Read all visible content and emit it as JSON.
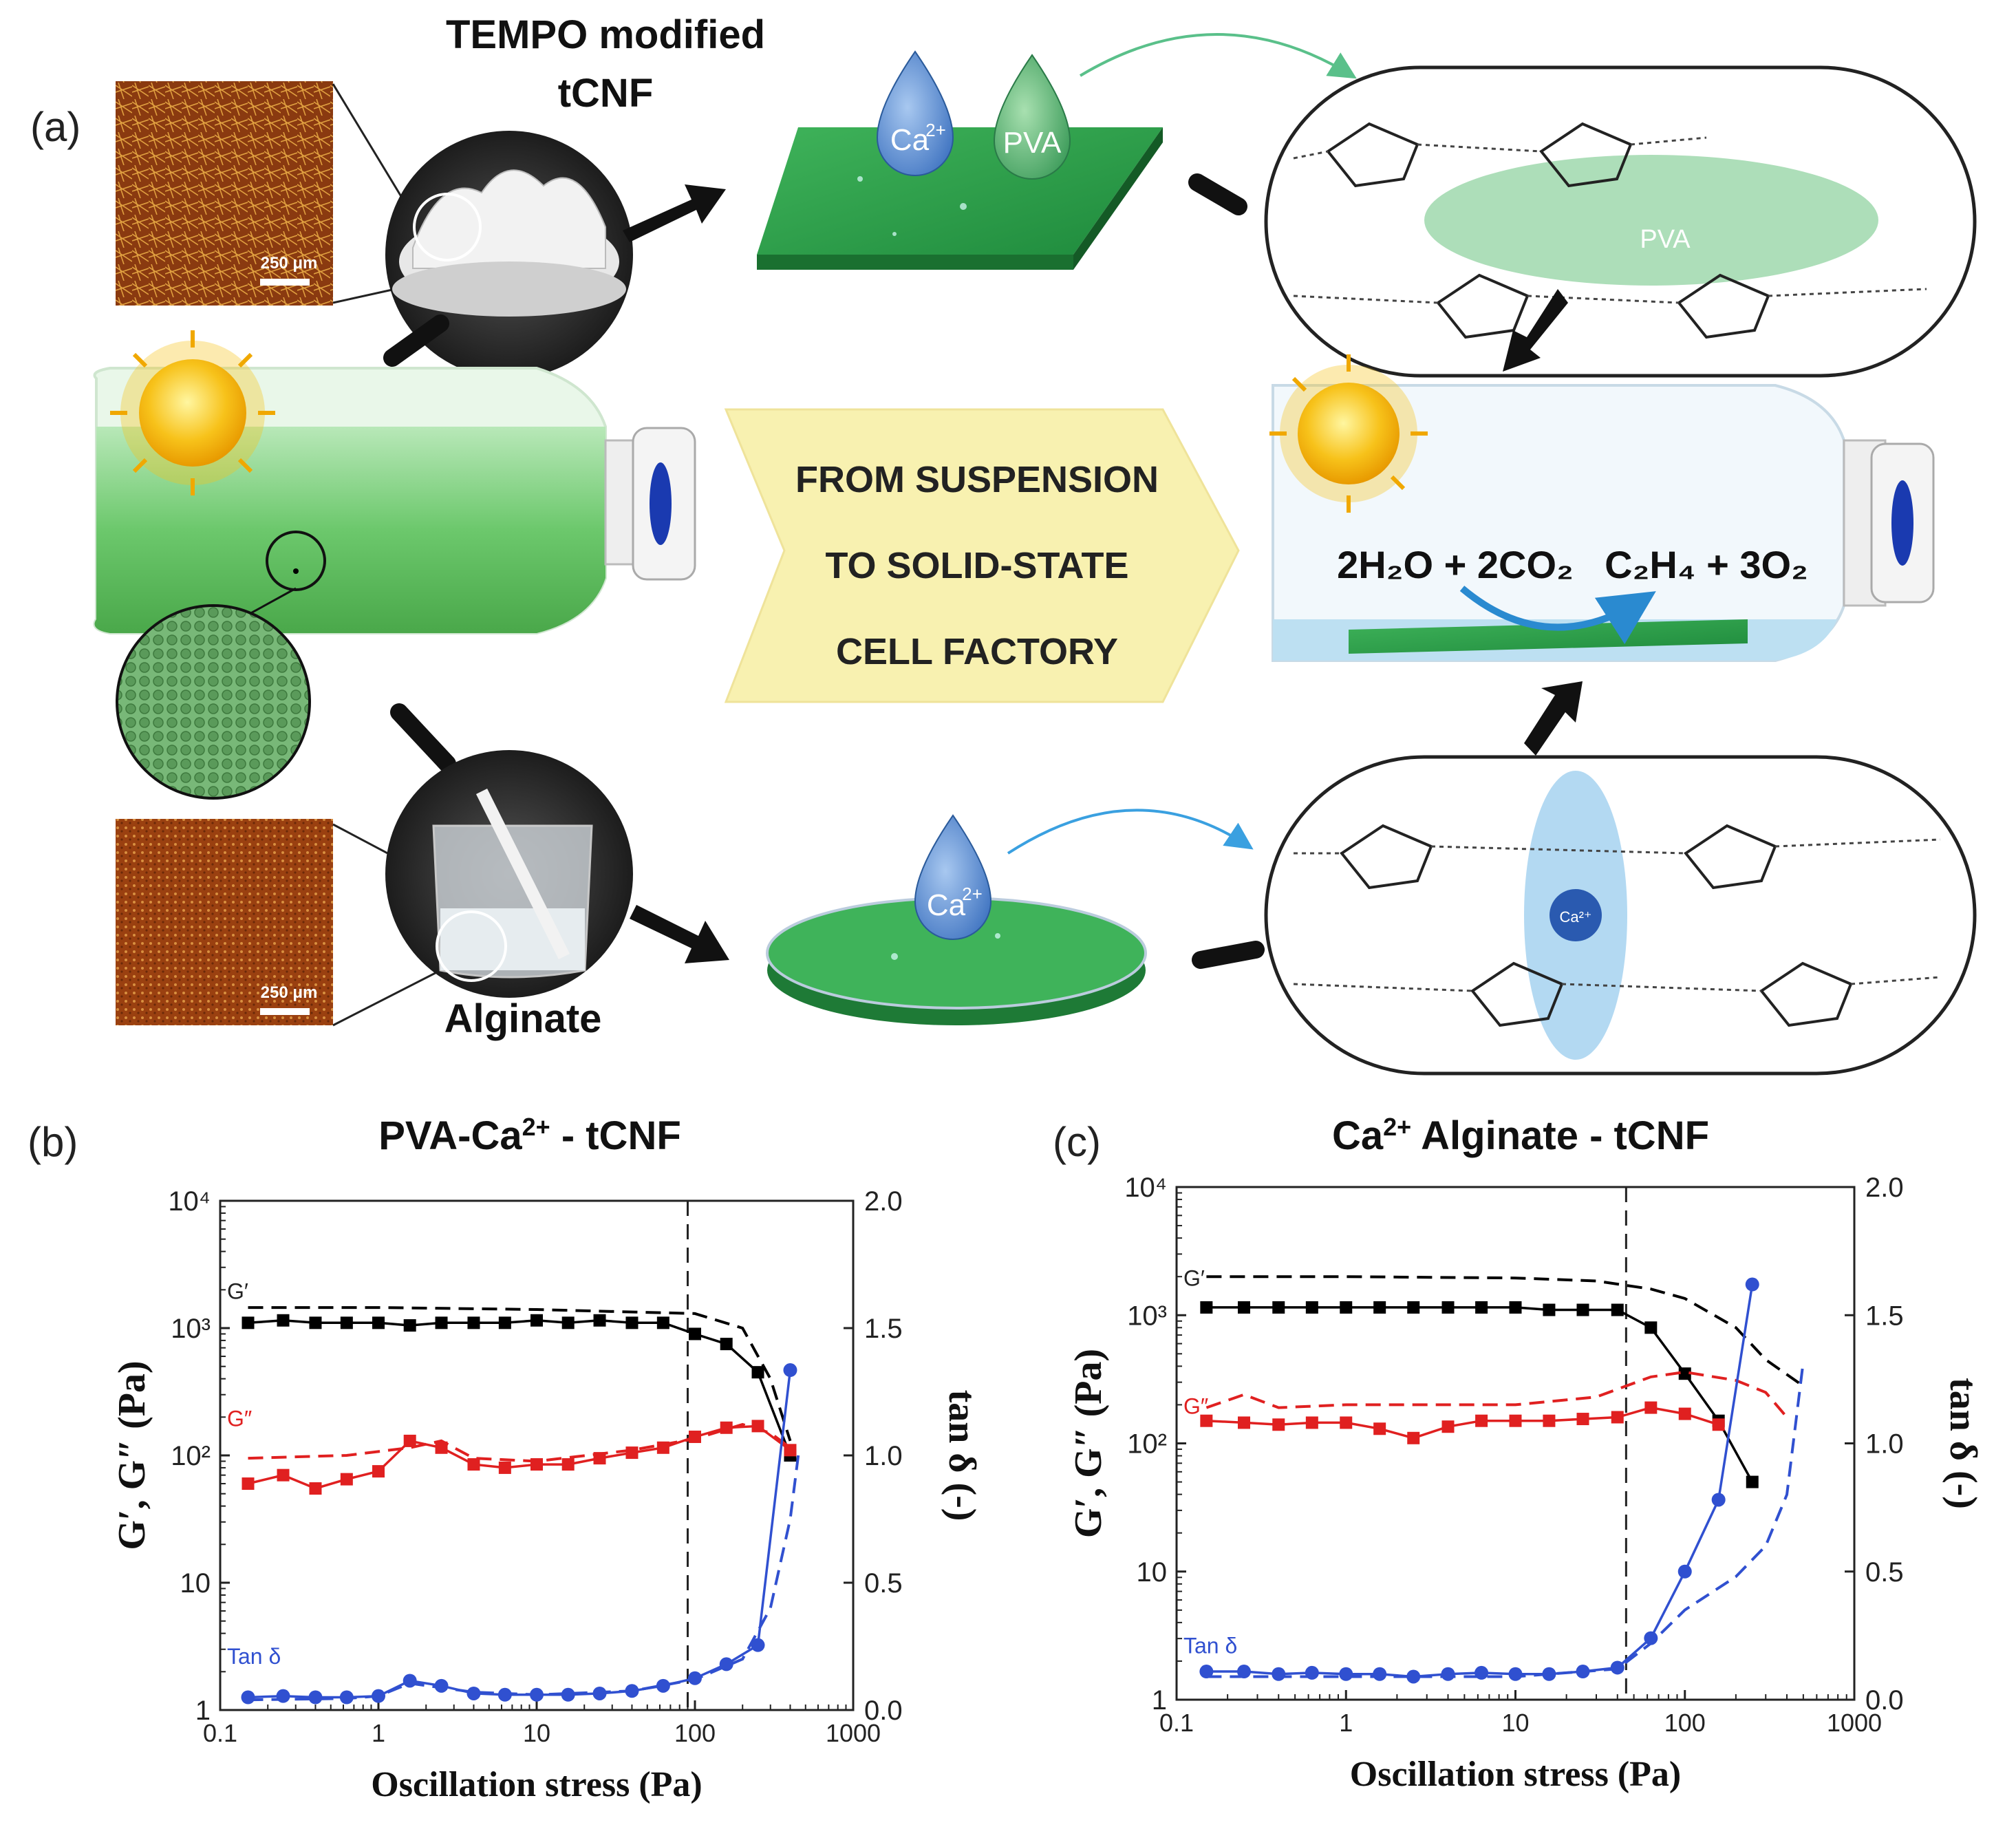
{
  "panel_a": {
    "label": "(a)",
    "tcnf_title_1": "TEMPO modified",
    "tcnf_title_2": "tCNF",
    "scale_bar_top": "250 μm",
    "scale_bar_bottom": "250 μm",
    "alginate_label": "Alginate",
    "drop_ca": "Ca",
    "drop_ca_sup": "2+",
    "drop_pva": "PVA",
    "drop_ca_bottom": "Ca",
    "drop_ca_bottom_sup": "2+",
    "banner": [
      "FROM SUSPENSION",
      "TO SOLID-STATE",
      "CELL FACTORY"
    ],
    "reaction_left": "2H₂O + 2CO₂",
    "reaction_right": "C₂H₄ + 3O₂",
    "pva_label": "PVA",
    "ca_center": "Ca²⁺",
    "colors": {
      "green": "#2e9e4a",
      "light_green": "#8ed39b",
      "banner": "#f8f1b0",
      "blue_drop": "#5b8fd0"
    }
  },
  "panel_b": {
    "label": "(b)",
    "title_main": "PVA-Ca",
    "title_sup": "2+",
    "title_tail": " - tCNF"
  },
  "panel_c": {
    "label": "(c)",
    "title_main": "Ca",
    "title_sup": "2+",
    "title_tail": " Alginate - tCNF"
  },
  "chart_data": [
    {
      "type": "line",
      "title": "PVA-Ca2+ - tCNF",
      "xlabel": "Oscillation stress (Pa)",
      "ylabel": "G′, G″ (Pa)",
      "y2label": "tan δ (-)",
      "xscale": "log",
      "xlim": [
        0.1,
        1000
      ],
      "xticks": [
        "0.1",
        "1",
        "10",
        "100",
        "1000"
      ],
      "yscale": "log",
      "ylim": [
        1,
        10000
      ],
      "yticks": [
        "1",
        "10",
        "10²",
        "10³",
        "10⁴"
      ],
      "y2lim": [
        0,
        2
      ],
      "y2ticks": [
        "0.0",
        "0.5",
        "1.0",
        "1.5",
        "2.0"
      ],
      "vline": 90,
      "series_labels": [
        "G′",
        "G″",
        "Tan δ"
      ],
      "series": [
        {
          "name": "G′",
          "axis": "left",
          "style": "solid-marker",
          "color": "#000000",
          "x": [
            0.15,
            0.25,
            0.4,
            0.63,
            1.0,
            1.58,
            2.5,
            4.0,
            6.3,
            10,
            15.8,
            25,
            40,
            63,
            100,
            158,
            250,
            400
          ],
          "y": [
            1100,
            1150,
            1100,
            1100,
            1100,
            1050,
            1100,
            1100,
            1100,
            1150,
            1100,
            1150,
            1100,
            1100,
            900,
            750,
            450,
            100
          ]
        },
        {
          "name": "G′ dashed",
          "axis": "left",
          "style": "dashed",
          "color": "#000000",
          "x": [
            0.15,
            1.0,
            10,
            100,
            200,
            300,
            400
          ],
          "y": [
            1450,
            1450,
            1400,
            1300,
            1000,
            400,
            130
          ]
        },
        {
          "name": "G″",
          "axis": "left",
          "style": "solid-marker",
          "color": "#e02020",
          "x": [
            0.15,
            0.25,
            0.4,
            0.63,
            1.0,
            1.58,
            2.5,
            4.0,
            6.3,
            10,
            15.8,
            25,
            40,
            63,
            100,
            158,
            250,
            400
          ],
          "y": [
            60,
            70,
            55,
            65,
            75,
            130,
            115,
            85,
            80,
            85,
            85,
            95,
            105,
            115,
            140,
            165,
            170,
            110
          ]
        },
        {
          "name": "G″ dashed",
          "axis": "left",
          "style": "dashed",
          "color": "#e02020",
          "x": [
            0.15,
            0.63,
            1.58,
            2.5,
            4.0,
            10,
            40,
            100,
            200,
            300,
            400
          ],
          "y": [
            95,
            100,
            115,
            130,
            95,
            90,
            110,
            135,
            175,
            150,
            115
          ]
        },
        {
          "name": "Tan δ",
          "axis": "right",
          "style": "solid-marker",
          "color": "#3050d0",
          "x": [
            0.15,
            0.25,
            0.4,
            0.63,
            1.0,
            1.58,
            2.5,
            4.0,
            6.3,
            10,
            15.8,
            25,
            40,
            63,
            100,
            158,
            250,
            400
          ],
          "y": [
            0.05,
            0.055,
            0.05,
            0.05,
            0.055,
            0.115,
            0.095,
            0.065,
            0.06,
            0.06,
            0.06,
            0.065,
            0.075,
            0.095,
            0.125,
            0.18,
            0.255,
            1.335
          ]
        },
        {
          "name": "Tan δ dashed",
          "axis": "right",
          "style": "dashed",
          "color": "#3050d0",
          "x": [
            0.15,
            0.63,
            1.0,
            1.58,
            4.0,
            10,
            40,
            100,
            200,
            300,
            400,
            450
          ],
          "y": [
            0.04,
            0.045,
            0.055,
            0.105,
            0.07,
            0.06,
            0.075,
            0.12,
            0.2,
            0.4,
            0.75,
            1.0
          ]
        }
      ]
    },
    {
      "type": "line",
      "title": "Ca2+ Alginate - tCNF",
      "xlabel": "Oscillation stress (Pa)",
      "ylabel": "G′, G″ (Pa)",
      "y2label": "tan δ (-)",
      "xscale": "log",
      "xlim": [
        0.1,
        1000
      ],
      "xticks": [
        "0.1",
        "1",
        "10",
        "100",
        "1000"
      ],
      "yscale": "log",
      "ylim": [
        1,
        10000
      ],
      "yticks": [
        "1",
        "10",
        "10²",
        "10³",
        "10⁴"
      ],
      "y2lim": [
        0,
        2
      ],
      "y2ticks": [
        "0.0",
        "0.5",
        "1.0",
        "1.5",
        "2.0"
      ],
      "vline": 45,
      "series_labels": [
        "G′",
        "G″",
        "Tan δ"
      ],
      "series": [
        {
          "name": "G′",
          "axis": "left",
          "style": "solid-marker",
          "color": "#000000",
          "x": [
            0.15,
            0.25,
            0.4,
            0.63,
            1.0,
            1.58,
            2.5,
            4.0,
            6.3,
            10,
            15.8,
            25,
            40,
            63,
            100,
            158,
            250
          ],
          "y": [
            1150,
            1150,
            1150,
            1150,
            1150,
            1150,
            1150,
            1150,
            1150,
            1150,
            1100,
            1100,
            1100,
            800,
            350,
            150,
            50
          ]
        },
        {
          "name": "G′ dashed",
          "axis": "left",
          "style": "dashed",
          "color": "#000000",
          "x": [
            0.15,
            1.0,
            10,
            30,
            63,
            100,
            200,
            300,
            500
          ],
          "y": [
            2000,
            2000,
            1950,
            1850,
            1600,
            1350,
            800,
            450,
            280
          ]
        },
        {
          "name": "G″",
          "axis": "left",
          "style": "solid-marker",
          "color": "#e02020",
          "x": [
            0.15,
            0.25,
            0.4,
            0.63,
            1.0,
            1.58,
            2.5,
            4.0,
            6.3,
            10,
            15.8,
            25,
            40,
            63,
            100,
            158
          ],
          "y": [
            150,
            145,
            140,
            145,
            145,
            130,
            110,
            135,
            150,
            150,
            150,
            155,
            160,
            190,
            170,
            140
          ]
        },
        {
          "name": "G″ dashed",
          "axis": "left",
          "style": "dashed",
          "color": "#e02020",
          "x": [
            0.15,
            0.25,
            0.4,
            1.0,
            10,
            30,
            63,
            100,
            200,
            300,
            400
          ],
          "y": [
            190,
            240,
            190,
            200,
            200,
            230,
            330,
            360,
            310,
            250,
            160
          ]
        },
        {
          "name": "Tan δ",
          "axis": "right",
          "style": "solid-marker",
          "color": "#3050d0",
          "x": [
            0.15,
            0.25,
            0.4,
            0.63,
            1.0,
            1.58,
            2.5,
            4.0,
            6.3,
            10,
            15.8,
            25,
            40,
            63,
            100,
            158,
            250
          ],
          "y": [
            0.11,
            0.11,
            0.1,
            0.105,
            0.1,
            0.1,
            0.09,
            0.1,
            0.105,
            0.1,
            0.1,
            0.11,
            0.125,
            0.24,
            0.5,
            0.78,
            1.62
          ]
        },
        {
          "name": "Tan δ dashed",
          "axis": "right",
          "style": "dashed",
          "color": "#3050d0",
          "x": [
            0.15,
            1.0,
            10,
            40,
            63,
            100,
            200,
            300,
            400,
            500
          ],
          "y": [
            0.09,
            0.09,
            0.09,
            0.12,
            0.22,
            0.35,
            0.48,
            0.6,
            0.8,
            1.32
          ]
        }
      ]
    }
  ]
}
